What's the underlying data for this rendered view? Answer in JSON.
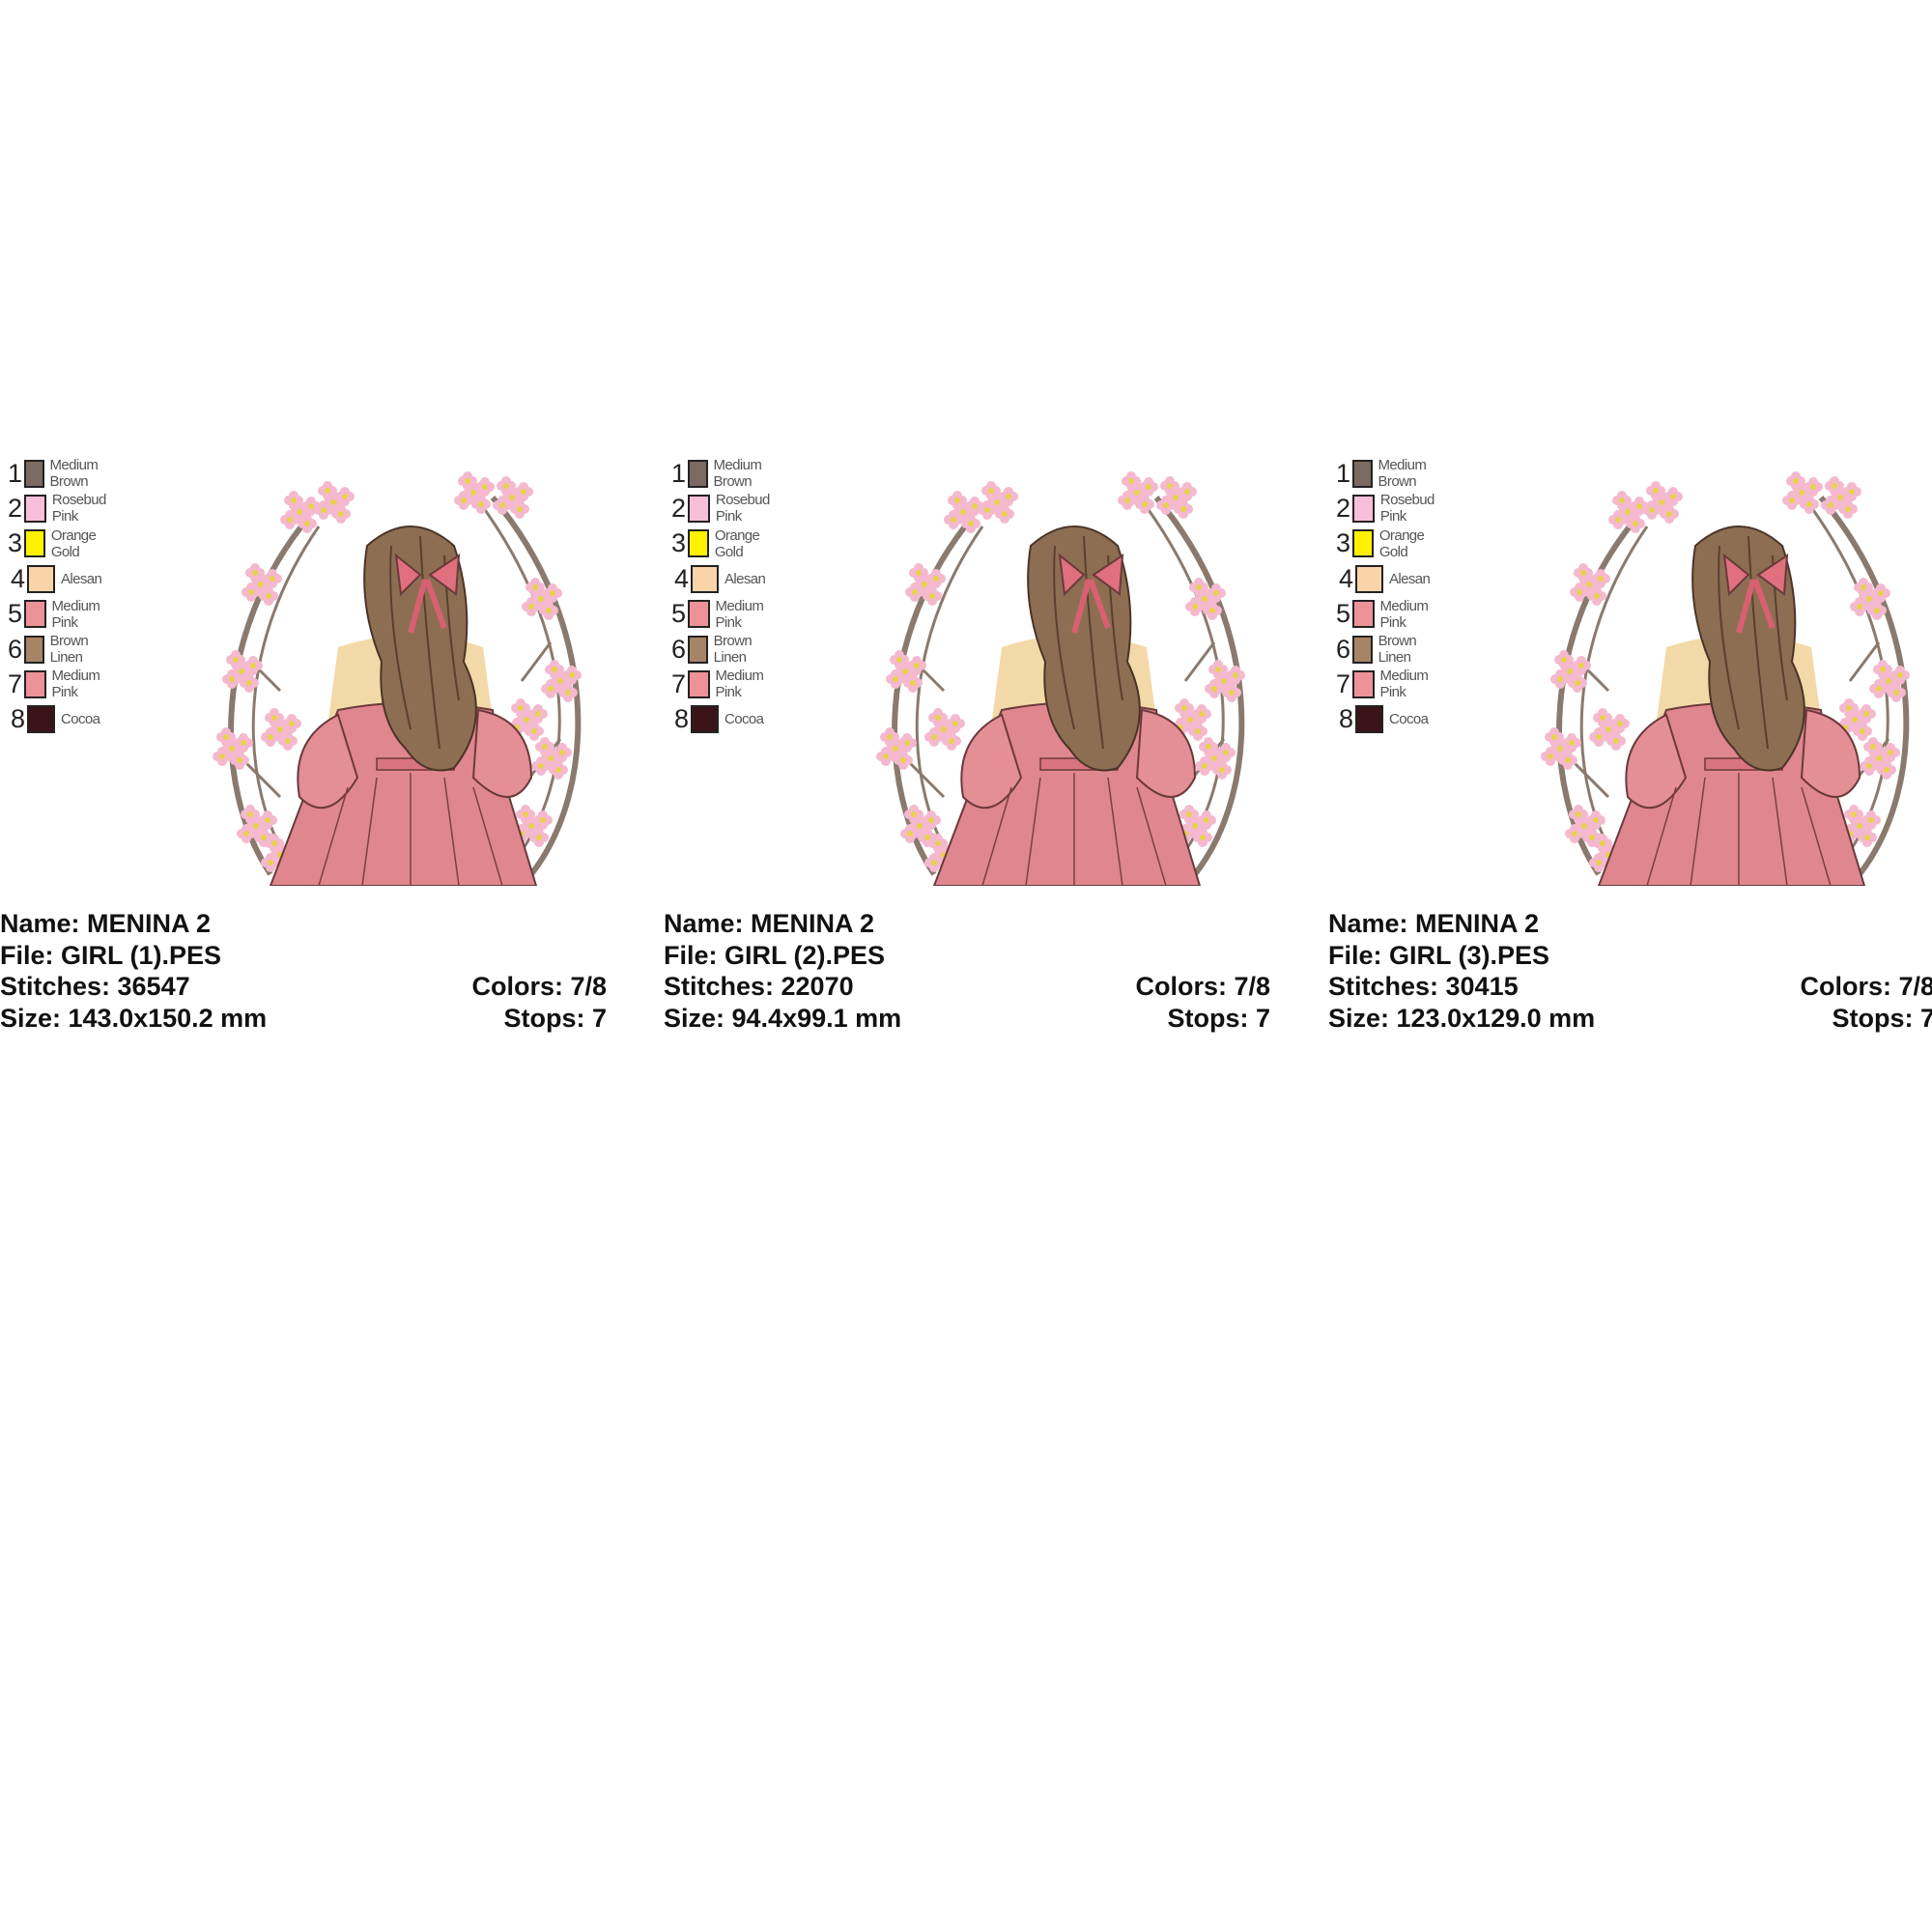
{
  "palette": [
    {
      "num": "1",
      "name": "Medium Brown",
      "color": "#7a6a62"
    },
    {
      "num": "2",
      "name": "Rosebud Pink",
      "color": "#f8bfd8"
    },
    {
      "num": "3",
      "name": "Orange Gold",
      "color": "#fff200"
    },
    {
      "num": "4",
      "name": "Alesan",
      "color": "#f8d4a8"
    },
    {
      "num": "5",
      "name": "Medium Pink",
      "color": "#ec9298"
    },
    {
      "num": "6",
      "name": "Brown Linen",
      "color": "#a58468"
    },
    {
      "num": "7",
      "name": "Medium Pink",
      "color": "#ec9298"
    },
    {
      "num": "8",
      "name": "Cocoa",
      "color": "#3a1418"
    }
  ],
  "designs": [
    {
      "name": "Name: MENINA 2",
      "file": "File: GIRL (1).PES",
      "stitches": "Stitches: 36547",
      "size": "Size: 143.0x150.2 mm",
      "colors": "Colors: 7/8",
      "stops": "Stops: 7"
    },
    {
      "name": "Name: MENINA 2",
      "file": "File: GIRL (2).PES",
      "stitches": "Stitches: 22070",
      "size": "Size: 94.4x99.1 mm",
      "colors": "Colors: 7/8",
      "stops": "Stops: 7"
    },
    {
      "name": "Name: MENINA 2",
      "file": "File: GIRL (3).PES",
      "stitches": "Stitches: 30415",
      "size": "Size: 123.0x129.0 mm",
      "colors": "Colors: 7/8",
      "stops": "Stops: 7"
    }
  ]
}
